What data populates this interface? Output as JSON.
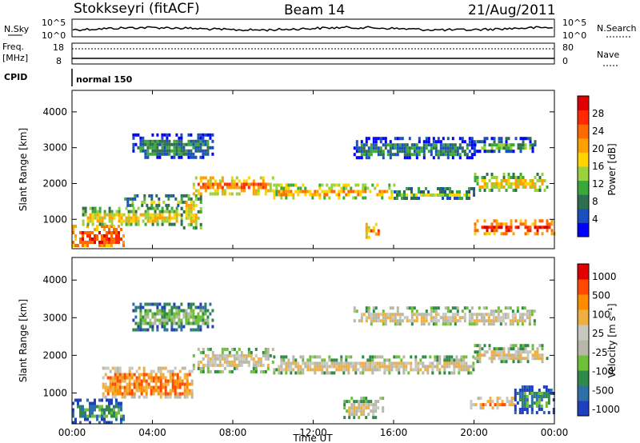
{
  "header": {
    "station": "Stokkseyri (fitACF)",
    "beam": "Beam 14",
    "date": "21/Aug/2011"
  },
  "side_labels": {
    "nsky": "N.Sky",
    "nsearch": "N.Search",
    "freq": "Freq.",
    "freq_unit": "[MHz]",
    "nave": "Nave",
    "cpid": "CPID",
    "cpid_value": "normal 150"
  },
  "mini_ticks": {
    "noise_left": [
      "10^5",
      "10^0"
    ],
    "noise_right": [
      "10^5",
      "10^0"
    ],
    "freq_left": [
      "18",
      "8"
    ],
    "freq_right": [
      "80",
      "0"
    ]
  },
  "chart_data": [
    {
      "type": "heatmap",
      "panel": "power",
      "ylabel": "Slant Range [km]",
      "xlabel": "",
      "x_ticks": [
        "00:00",
        "04:00",
        "08:00",
        "12:00",
        "16:00",
        "20:00",
        "00:00"
      ],
      "y_ticks": [
        1000,
        2000,
        3000,
        4000
      ],
      "xlim_hours": [
        0,
        24
      ],
      "ylim_km": [
        180,
        4600
      ],
      "colorbar": {
        "label": "Power [dB]",
        "ticks": [
          "4",
          "8",
          "12",
          "16",
          "20",
          "24",
          "28"
        ],
        "colors": [
          "#0000ff",
          "#1a4fbf",
          "#2f6f4f",
          "#3aa83a",
          "#9bd23c",
          "#ffd400",
          "#ffa000",
          "#ff6a00",
          "#ff2a00",
          "#e00000"
        ]
      },
      "regions": [
        {
          "t0": 0.0,
          "t1": 2.6,
          "r0": 250,
          "r1": 850,
          "level": 8
        },
        {
          "t0": 0.5,
          "t1": 5.5,
          "r0": 850,
          "r1": 1350,
          "level": 5
        },
        {
          "t0": 2.6,
          "t1": 5.6,
          "r0": 1400,
          "r1": 1700,
          "level": 4
        },
        {
          "t0": 5.4,
          "t1": 6.4,
          "r0": 800,
          "r1": 1700,
          "level": 5
        },
        {
          "t0": 6.0,
          "t1": 10.0,
          "r0": 1750,
          "r1": 2200,
          "level": 7
        },
        {
          "t0": 10.0,
          "t1": 16.0,
          "r0": 1600,
          "r1": 2000,
          "level": 6
        },
        {
          "t0": 16.0,
          "t1": 20.0,
          "r0": 1550,
          "r1": 1900,
          "level": 4
        },
        {
          "t0": 20.0,
          "t1": 23.7,
          "r0": 1800,
          "r1": 2300,
          "level": 5
        },
        {
          "t0": 14.6,
          "t1": 15.4,
          "r0": 500,
          "r1": 900,
          "level": 7
        },
        {
          "t0": 20.0,
          "t1": 24.0,
          "r0": 600,
          "r1": 1000,
          "level": 8
        },
        {
          "t0": 3.0,
          "t1": 7.0,
          "r0": 2700,
          "r1": 3400,
          "level": 2
        },
        {
          "t0": 14.0,
          "t1": 20.0,
          "r0": 2700,
          "r1": 3300,
          "level": 2
        },
        {
          "t0": 20.0,
          "t1": 23.0,
          "r0": 2900,
          "r1": 3300,
          "level": 3
        }
      ]
    },
    {
      "type": "heatmap",
      "panel": "velocity",
      "ylabel": "Slant Range [km]",
      "xlabel": "Time UT",
      "x_ticks": [
        "00:00",
        "04:00",
        "08:00",
        "12:00",
        "16:00",
        "20:00",
        "00:00"
      ],
      "y_ticks": [
        1000,
        2000,
        3000,
        4000
      ],
      "xlim_hours": [
        0,
        24
      ],
      "ylim_km": [
        180,
        4600
      ],
      "colorbar": {
        "label": "Velocity [m s⁻¹]",
        "ticks": [
          "1000",
          "500",
          "100",
          "25",
          "-25",
          "-100",
          "-500",
          "-1000"
        ],
        "colors": [
          "#1f3fbf",
          "#2f6fa8",
          "#2f8a4a",
          "#6fbf3a",
          "#b8b8a8",
          "#c8c8c0",
          "#f0b040",
          "#ff8c00",
          "#ff4a00",
          "#e00000"
        ]
      },
      "regions": [
        {
          "t0": 0.0,
          "t1": 2.6,
          "r0": 250,
          "r1": 850,
          "level": 2
        },
        {
          "t0": 1.5,
          "t1": 6.0,
          "r0": 850,
          "r1": 1700,
          "level": 7
        },
        {
          "t0": 6.0,
          "t1": 10.0,
          "r0": 1600,
          "r1": 2200,
          "level": 5
        },
        {
          "t0": 10.0,
          "t1": 20.0,
          "r0": 1500,
          "r1": 2000,
          "level": 5
        },
        {
          "t0": 20.0,
          "t1": 23.7,
          "r0": 1800,
          "r1": 2300,
          "level": 5
        },
        {
          "t0": 19.8,
          "t1": 22.0,
          "r0": 600,
          "r1": 900,
          "level": 7
        },
        {
          "t0": 22.0,
          "t1": 24.0,
          "r0": 500,
          "r1": 1200,
          "level": 2
        },
        {
          "t0": 13.5,
          "t1": 15.5,
          "r0": 350,
          "r1": 900,
          "level": 5
        },
        {
          "t0": 3.0,
          "t1": 7.0,
          "r0": 2700,
          "r1": 3400,
          "level": 3
        },
        {
          "t0": 14.0,
          "t1": 23.0,
          "r0": 2800,
          "r1": 3300,
          "level": 5
        }
      ]
    }
  ]
}
